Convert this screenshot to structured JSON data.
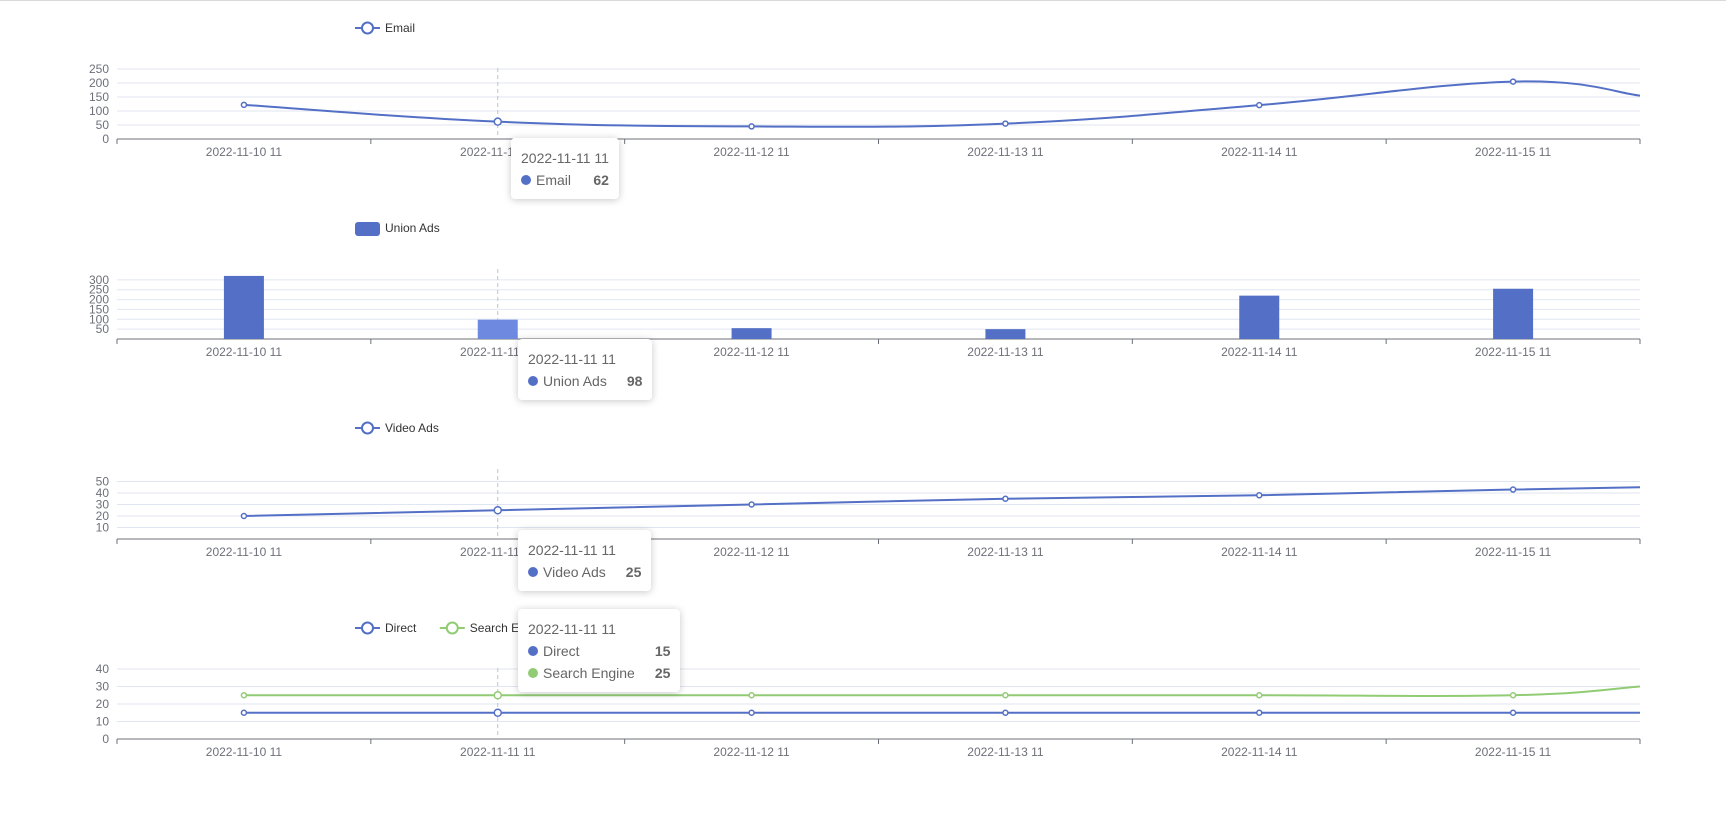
{
  "colors": {
    "blue": "#5470c6",
    "green": "#91cc75",
    "axis": "#6e7079",
    "grid": "#e0e6f1",
    "pointer": "#b9c2d6"
  },
  "chart_data": [
    {
      "type": "line",
      "categories": [
        "2022-11-10 11",
        "2022-11-11 11",
        "2022-11-12 11",
        "2022-11-13 11",
        "2022-11-14 11",
        "2022-11-15 11"
      ],
      "legend": [
        {
          "name": "Email",
          "color": "#5470c6",
          "icon": "line-circle-icon"
        }
      ],
      "y_ticks": [
        "0",
        "50",
        "100",
        "150",
        "200",
        "250"
      ],
      "ylim": [
        0,
        250
      ],
      "series": [
        {
          "name": "Email",
          "values": [
            122,
            62,
            45,
            55,
            121,
            205
          ],
          "end_value": 155,
          "color": "#5470c6"
        }
      ],
      "tooltip": {
        "title": "2022-11-11 11",
        "rows": [
          {
            "name": "Email",
            "value": "62",
            "color": "#5470c6"
          }
        ]
      }
    },
    {
      "type": "bar",
      "categories": [
        "2022-11-10 11",
        "2022-11-11 11",
        "2022-11-12 11",
        "2022-11-13 11",
        "2022-11-14 11",
        "2022-11-15 11"
      ],
      "legend": [
        {
          "name": "Union Ads",
          "color": "#5470c6",
          "icon": "bar-swatch-icon"
        }
      ],
      "y_ticks": [
        "50",
        "100",
        "150",
        "200",
        "250",
        "300"
      ],
      "ylim": [
        0,
        350
      ],
      "series": [
        {
          "name": "Union Ads",
          "values": [
            320,
            98,
            55,
            50,
            220,
            255
          ],
          "color": "#5470c6"
        }
      ],
      "tooltip": {
        "title": "2022-11-11 11",
        "rows": [
          {
            "name": "Union Ads",
            "value": "98",
            "color": "#5470c6"
          }
        ]
      }
    },
    {
      "type": "line",
      "categories": [
        "2022-11-10 11",
        "2022-11-11 11",
        "2022-11-12 11",
        "2022-11-13 11",
        "2022-11-14 11",
        "2022-11-15 11"
      ],
      "legend": [
        {
          "name": "Video Ads",
          "color": "#5470c6",
          "icon": "line-circle-icon"
        }
      ],
      "y_ticks": [
        "10",
        "20",
        "30",
        "40",
        "50"
      ],
      "ylim": [
        0,
        60
      ],
      "series": [
        {
          "name": "Video Ads",
          "values": [
            20,
            25,
            30,
            35,
            38,
            43
          ],
          "end_value": 45,
          "color": "#5470c6"
        }
      ],
      "tooltip": {
        "title": "2022-11-11 11",
        "rows": [
          {
            "name": "Video Ads",
            "value": "25",
            "color": "#5470c6"
          }
        ]
      }
    },
    {
      "type": "line",
      "categories": [
        "2022-11-10 11",
        "2022-11-11 11",
        "2022-11-12 11",
        "2022-11-13 11",
        "2022-11-14 11",
        "2022-11-15 11"
      ],
      "legend": [
        {
          "name": "Direct",
          "color": "#5470c6",
          "icon": "line-circle-icon"
        },
        {
          "name": "Search Engine",
          "color": "#91cc75",
          "icon": "line-circle-icon"
        }
      ],
      "y_ticks": [
        "0",
        "10",
        "20",
        "30",
        "40"
      ],
      "ylim": [
        0,
        40
      ],
      "series": [
        {
          "name": "Direct",
          "values": [
            15,
            15,
            15,
            15,
            15,
            15
          ],
          "end_value": 15,
          "color": "#5470c6"
        },
        {
          "name": "Search Engine",
          "values": [
            25,
            25,
            25,
            25,
            25,
            25
          ],
          "end_value": 30,
          "color": "#91cc75"
        }
      ],
      "tooltip": {
        "title": "2022-11-11 11",
        "rows": [
          {
            "name": "Direct",
            "value": "15",
            "color": "#5470c6"
          },
          {
            "name": "Search Engine",
            "value": "25",
            "color": "#91cc75"
          }
        ]
      }
    }
  ]
}
